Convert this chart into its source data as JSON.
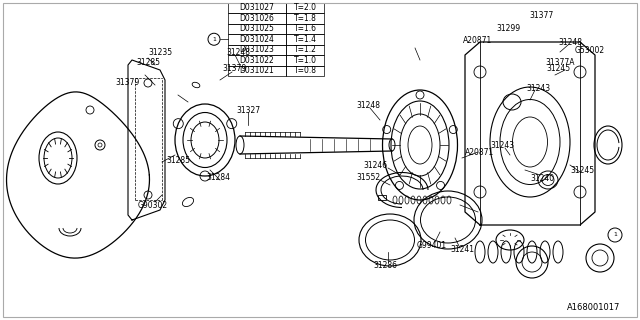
{
  "bg_color": "#ffffff",
  "diagram_id": "A168001017",
  "table": {
    "col1": [
      "D031021",
      "D031022",
      "D031023",
      "D031024",
      "D031025",
      "D031026",
      "D031027"
    ],
    "col2": [
      "T=0.8",
      "T=1.0",
      "T=1.2",
      "T=1.4",
      "T=1.6",
      "T=1.8",
      "T=2.0"
    ]
  },
  "line_color": "#000000",
  "text_color": "#000000"
}
